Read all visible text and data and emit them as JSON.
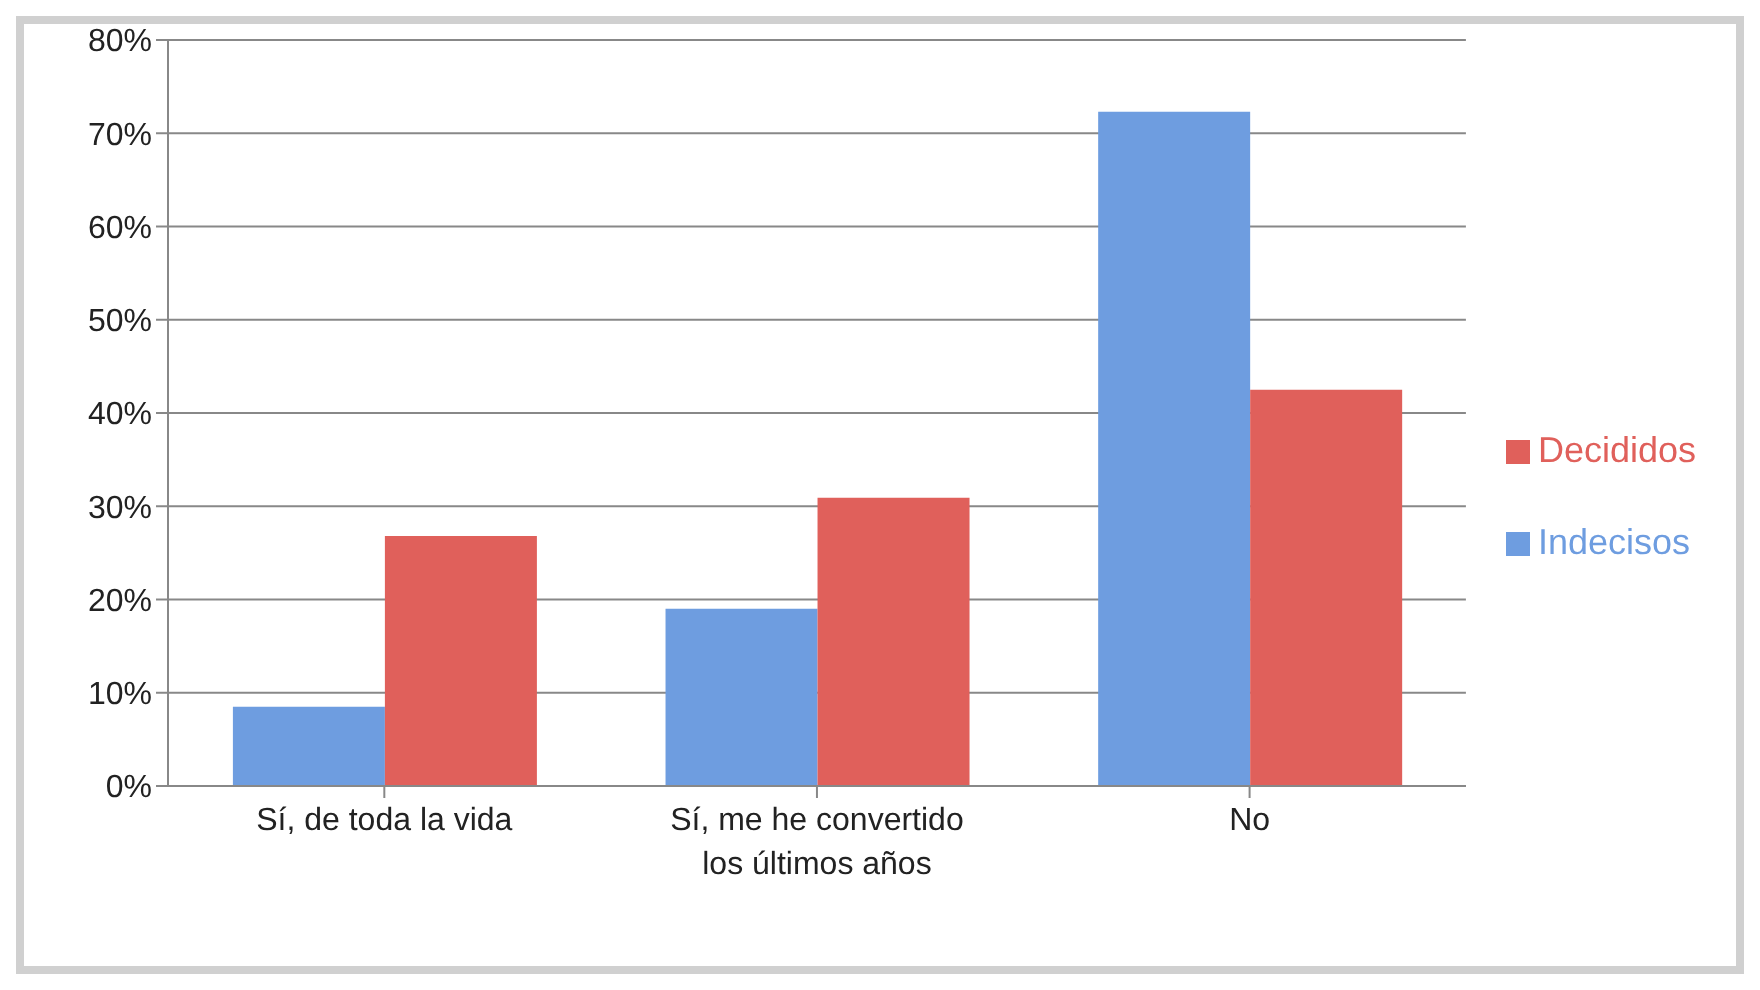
{
  "chart_data": {
    "type": "bar",
    "categories": [
      "Sí, de toda la vida",
      "Sí, me he convertido los últimos años",
      "No"
    ],
    "series": [
      {
        "name": "Indecisos",
        "color": "#6e9de0",
        "values": [
          8.5,
          19,
          72.3
        ]
      },
      {
        "name": "Decididos",
        "color": "#e0605b",
        "values": [
          26.8,
          30.9,
          42.5
        ]
      }
    ],
    "ylim": [
      0,
      80
    ],
    "yticks": [
      {
        "value": 0,
        "label": "0%"
      },
      {
        "value": 10,
        "label": "10%"
      },
      {
        "value": 20,
        "label": "20%"
      },
      {
        "value": 30,
        "label": "30%"
      },
      {
        "value": 40,
        "label": "40%"
      },
      {
        "value": 50,
        "label": "50%"
      },
      {
        "value": 60,
        "label": "60%"
      },
      {
        "value": 70,
        "label": "70%"
      },
      {
        "value": 80,
        "label": "80%"
      }
    ],
    "grid": "y",
    "legend": "right"
  }
}
